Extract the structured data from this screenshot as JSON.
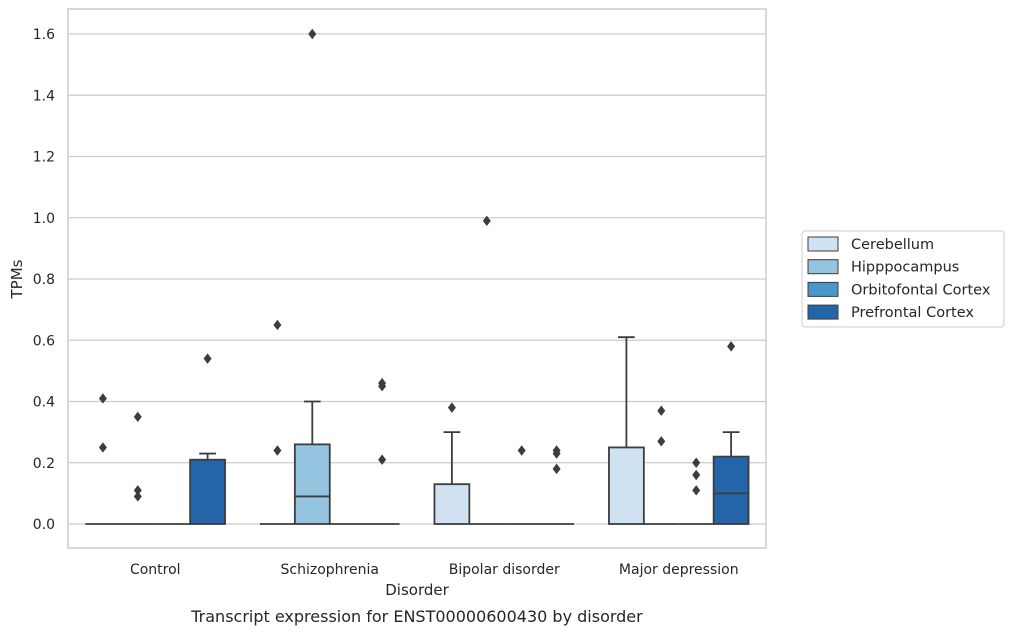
{
  "chart_data": {
    "type": "box",
    "xlabel": "Disorder",
    "ylabel": "TPMs",
    "caption": "Transcript expression for ENST00000600430 by disorder",
    "ylim": [
      -0.08,
      1.68
    ],
    "yticks": [
      "0.0",
      "0.2",
      "0.4",
      "0.6",
      "0.8",
      "1.0",
      "1.2",
      "1.4",
      "1.6"
    ],
    "ytick_values": [
      0,
      0.2,
      0.4,
      0.6,
      0.8,
      1.0,
      1.2,
      1.4,
      1.6
    ],
    "grid": true,
    "legend_position": "right",
    "categories": [
      "Control",
      "Schizophrenia",
      "Bipolar disorder",
      "Major depression"
    ],
    "series": [
      {
        "name": "Cerebellum",
        "color": "#d0e1f2",
        "boxes": [
          {
            "q1": 0,
            "median": 0,
            "q3": 0,
            "whisker_low": 0,
            "whisker_high": 0,
            "outliers": [
              0.41,
              0.25
            ]
          },
          {
            "q1": 0,
            "median": 0,
            "q3": 0,
            "whisker_low": 0,
            "whisker_high": 0,
            "outliers": [
              0.65,
              0.24
            ]
          },
          {
            "q1": 0,
            "median": 0,
            "q3": 0.13,
            "whisker_low": 0,
            "whisker_high": 0.3,
            "outliers": [
              0.38
            ]
          },
          {
            "q1": 0,
            "median": 0,
            "q3": 0.25,
            "whisker_low": 0,
            "whisker_high": 0.61,
            "outliers": []
          }
        ]
      },
      {
        "name": "Hipppocampus",
        "color": "#94c4df",
        "boxes": [
          {
            "q1": 0,
            "median": 0,
            "q3": 0,
            "whisker_low": 0,
            "whisker_high": 0,
            "outliers": [
              0.35,
              0.11,
              0.09
            ]
          },
          {
            "q1": 0,
            "median": 0.09,
            "q3": 0.26,
            "whisker_low": 0,
            "whisker_high": 0.4,
            "outliers": [
              1.6
            ]
          },
          {
            "q1": 0,
            "median": 0,
            "q3": 0,
            "whisker_low": 0,
            "whisker_high": 0,
            "outliers": [
              0.99
            ]
          },
          {
            "q1": 0,
            "median": 0,
            "q3": 0,
            "whisker_low": 0,
            "whisker_high": 0,
            "outliers": [
              0.37,
              0.27
            ]
          }
        ]
      },
      {
        "name": "Orbitofontal Cortex",
        "color": "#4a98c9",
        "boxes": [
          {
            "q1": 0,
            "median": 0,
            "q3": 0,
            "whisker_low": 0,
            "whisker_high": 0,
            "outliers": []
          },
          {
            "q1": 0,
            "median": 0,
            "q3": 0,
            "whisker_low": 0,
            "whisker_high": 0,
            "outliers": []
          },
          {
            "q1": 0,
            "median": 0,
            "q3": 0,
            "whisker_low": 0,
            "whisker_high": 0,
            "outliers": [
              0.24
            ]
          },
          {
            "q1": 0,
            "median": 0,
            "q3": 0,
            "whisker_low": 0,
            "whisker_high": 0,
            "outliers": [
              0.2,
              0.16,
              0.11
            ]
          }
        ]
      },
      {
        "name": "Prefrontal Cortex",
        "color": "#2464a8",
        "boxes": [
          {
            "q1": 0,
            "median": 0,
            "q3": 0.21,
            "whisker_low": 0,
            "whisker_high": 0.23,
            "outliers": [
              0.54
            ]
          },
          {
            "q1": 0,
            "median": 0,
            "q3": 0,
            "whisker_low": 0,
            "whisker_high": 0,
            "outliers": [
              0.46,
              0.45,
              0.21
            ]
          },
          {
            "q1": 0,
            "median": 0,
            "q3": 0,
            "whisker_low": 0,
            "whisker_high": 0,
            "outliers": [
              0.24,
              0.23,
              0.18
            ]
          },
          {
            "q1": 0,
            "median": 0.1,
            "q3": 0.22,
            "whisker_low": 0,
            "whisker_high": 0.3,
            "outliers": [
              0.58
            ]
          }
        ]
      }
    ]
  }
}
